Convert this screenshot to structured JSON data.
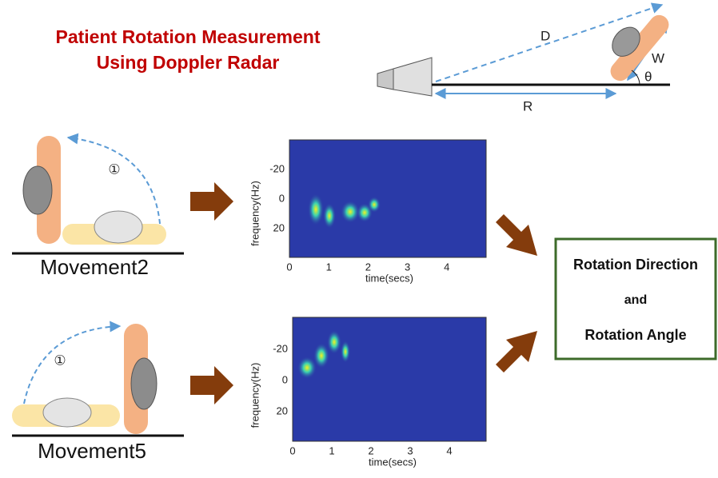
{
  "title": [
    "Patient Rotation Measurement",
    "Using Doppler Radar"
  ],
  "geometry": {
    "distance": "D",
    "width": "W",
    "range": "R",
    "angle": "θ"
  },
  "movements": [
    {
      "label": "Movement2",
      "step": "①",
      "spectrogram": {
        "y_label": "frequency(Hz)",
        "x_label": "time(secs)",
        "y_ticks": [
          "-20",
          "0",
          "20"
        ],
        "x_ticks": [
          "0",
          "1",
          "2",
          "3",
          "4"
        ]
      }
    },
    {
      "label": "Movement5",
      "step": "①",
      "spectrogram": {
        "y_label": "frequency(Hz)",
        "x_label": "time(secs)",
        "y_ticks": [
          "-20",
          "0",
          "20"
        ],
        "x_ticks": [
          "0",
          "1",
          "2",
          "3",
          "4"
        ]
      }
    }
  ],
  "result": {
    "lines": [
      "Rotation Direction",
      "and",
      "Rotation Angle"
    ]
  }
}
